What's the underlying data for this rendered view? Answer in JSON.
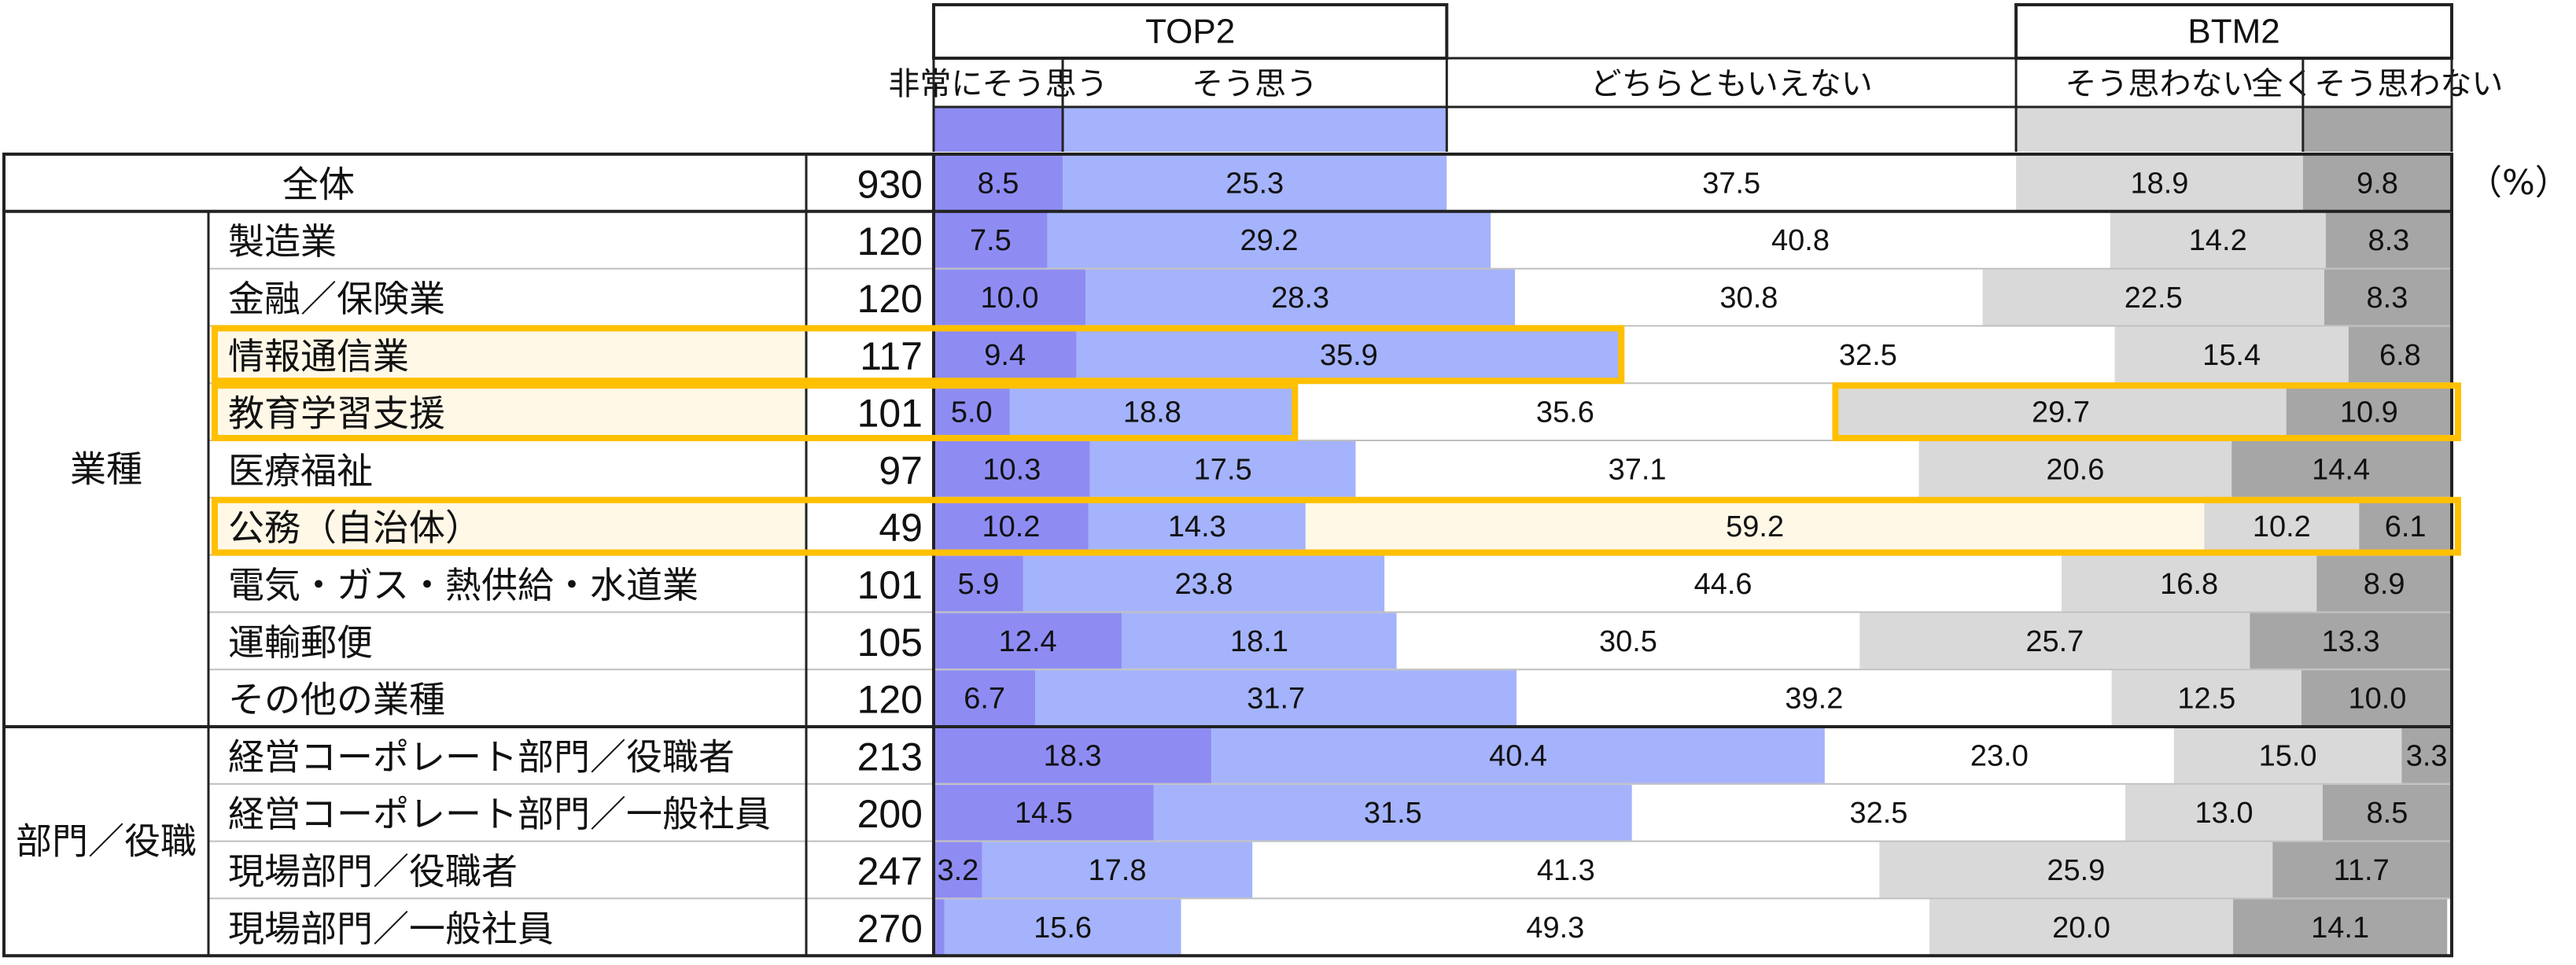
{
  "unit_label": "（%）",
  "top_group_label": "TOP2",
  "bottom_group_label": "BTM2",
  "colors": {
    "very_agree": "#8e8cf3",
    "agree": "#a4b3fb",
    "neutral": "#ffffff",
    "disagree": "#d9d9d9",
    "strongly_disagree": "#a6a6a6",
    "highlight_border": "#ffc000",
    "highlight_fill": "#fff8e7",
    "line": "#222222",
    "row_line": "#bfbfbf"
  },
  "chart_data": {
    "type": "bar",
    "stacked": true,
    "orientation": "horizontal",
    "percent": true,
    "xlim": [
      0,
      100
    ],
    "series": [
      {
        "name": "非常にそう思う",
        "color": "#8e8cf3"
      },
      {
        "name": "そう思う",
        "color": "#a4b3fb"
      },
      {
        "name": "どちらともいえない",
        "color": "#ffffff"
      },
      {
        "name": "そう思わない",
        "color": "#d9d9d9"
      },
      {
        "name": "全くそう思わない",
        "color": "#a6a6a6"
      }
    ],
    "rows": [
      {
        "group": "",
        "label": "全体",
        "n": 930,
        "values": [
          8.5,
          25.3,
          37.5,
          18.9,
          9.8
        ]
      },
      {
        "group": "業種",
        "label": "製造業",
        "n": 120,
        "values": [
          7.5,
          29.2,
          40.8,
          14.2,
          8.3
        ]
      },
      {
        "group": "業種",
        "label": "金融／保険業",
        "n": 120,
        "values": [
          10.0,
          28.3,
          30.8,
          22.5,
          8.3
        ]
      },
      {
        "group": "業種",
        "label": "情報通信業",
        "n": 117,
        "values": [
          9.4,
          35.9,
          32.5,
          15.4,
          6.8
        ],
        "highlight": "top2"
      },
      {
        "group": "業種",
        "label": "教育学習支援",
        "n": 101,
        "values": [
          5.0,
          18.8,
          35.6,
          29.7,
          10.9
        ],
        "highlight": "top2-btm2"
      },
      {
        "group": "業種",
        "label": "医療福祉",
        "n": 97,
        "values": [
          10.3,
          17.5,
          37.1,
          20.6,
          14.4
        ]
      },
      {
        "group": "業種",
        "label": "公務（自治体）",
        "n": 49,
        "values": [
          10.2,
          14.3,
          59.2,
          10.2,
          6.1
        ],
        "highlight": "row"
      },
      {
        "group": "業種",
        "label": "電気・ガス・熱供給・水道業",
        "n": 101,
        "values": [
          5.9,
          23.8,
          44.6,
          16.8,
          8.9
        ]
      },
      {
        "group": "業種",
        "label": "運輸郵便",
        "n": 105,
        "values": [
          12.4,
          18.1,
          30.5,
          25.7,
          13.3
        ]
      },
      {
        "group": "業種",
        "label": "その他の業種",
        "n": 120,
        "values": [
          6.7,
          31.7,
          39.2,
          12.5,
          10.0
        ]
      },
      {
        "group": "部門／役職",
        "label": "経営コーポレート部門／役職者",
        "n": 213,
        "values": [
          18.3,
          40.4,
          23.0,
          15.0,
          3.3
        ]
      },
      {
        "group": "部門／役職",
        "label": "経営コーポレート部門／一般社員",
        "n": 200,
        "values": [
          14.5,
          31.5,
          32.5,
          13.0,
          8.5
        ]
      },
      {
        "group": "部門／役職",
        "label": "現場部門／役職者",
        "n": 247,
        "values": [
          3.2,
          17.8,
          41.3,
          25.9,
          11.7
        ]
      },
      {
        "group": "部門／役職",
        "label": "現場部門／一般社員",
        "n": 270,
        "values": [
          0.7,
          15.6,
          49.3,
          20.0,
          14.1
        ],
        "hidden_labels": [
          0
        ]
      }
    ]
  }
}
